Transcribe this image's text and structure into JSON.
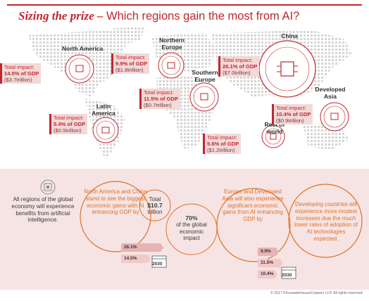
{
  "title": {
    "bold": "Sizing the prize –",
    "rest": " Which regions gain the most from AI?"
  },
  "regions": [
    {
      "id": "north-america",
      "name": "North America",
      "impact_label": "Total impact:",
      "gdp": "14.5% of GDP",
      "value": "($3.7trillion)"
    },
    {
      "id": "northern-europe",
      "name": "Northern Europe",
      "impact_label": "Total impact:",
      "gdp": "9.9% of GDP",
      "value": "($1.8trillion)"
    },
    {
      "id": "southern-europe",
      "name": "Southern Europe",
      "impact_label": "Total impact:",
      "gdp": "11.5% of GDP",
      "value": "($0.7trillion)"
    },
    {
      "id": "china",
      "name": "China",
      "impact_label": "Total impact:",
      "gdp": "26.1% of GDP",
      "value": "($7.0trillion)"
    },
    {
      "id": "developed-asia",
      "name": "Developed Asia",
      "impact_label": "Total impact:",
      "gdp": "10.4% of GDP",
      "value": "($0.9trillion)"
    },
    {
      "id": "latin-america",
      "name": "Latin America",
      "impact_label": "Total impact:",
      "gdp": "5.4% of GDP",
      "value": "($0.5trillion)"
    },
    {
      "id": "rest-of-world",
      "name": "Rest of world",
      "impact_label": "Total impact:",
      "gdp": "5.6% of GDP",
      "value": "($1.2trillion)"
    }
  ],
  "summary": {
    "intro": "All regions of the global economy will experience benefits from artificial intelligence.",
    "na_china": "North America and China stand to see the biggest economic gains with AI enhancing GDP by",
    "total_label": "Total",
    "total_value": "$10.7",
    "total_unit": "trillion",
    "share_pct": "70%",
    "share_text": "of the global economic impact",
    "eu_asia": "Europe and Developed Asia will also experience significant economic gains from AI enhancing GDP by",
    "developing": "Developing countries will experience more modest increases due the much lower rates of adoption of AI technologies expected.",
    "na_china_bars": [
      "26.1%",
      "14.5%"
    ],
    "eu_asia_bars": [
      "9.9%",
      "11.5%",
      "10.4%"
    ],
    "year": "2030"
  },
  "copyright": "© 2017 PricewaterhouseCoopers LLP. All rights reserved.",
  "colors": {
    "accent": "#c0272d",
    "orange": "#e07025",
    "panel": "#f6e4e4",
    "dots": "#d5d5d5"
  }
}
